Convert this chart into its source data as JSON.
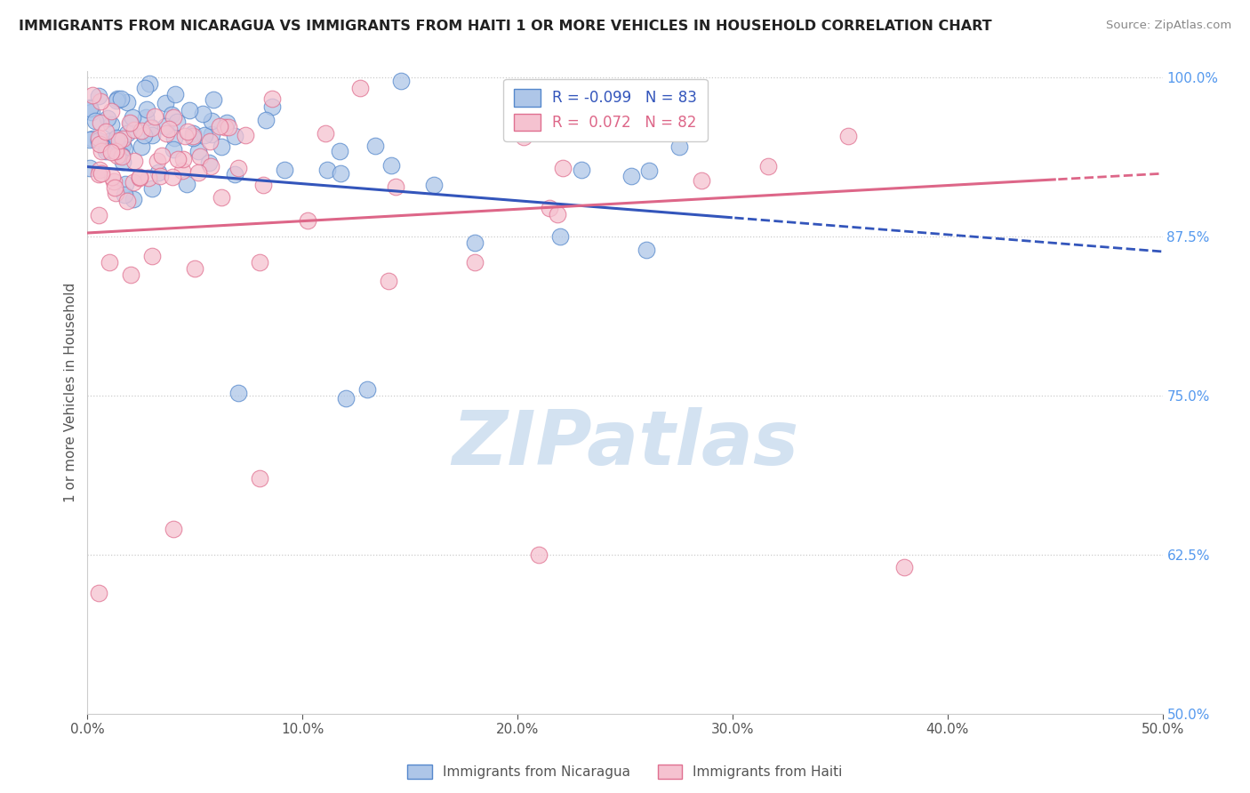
{
  "title": "IMMIGRANTS FROM NICARAGUA VS IMMIGRANTS FROM HAITI 1 OR MORE VEHICLES IN HOUSEHOLD CORRELATION CHART",
  "source": "Source: ZipAtlas.com",
  "ylabel": "1 or more Vehicles in Household",
  "xlim": [
    0.0,
    0.5
  ],
  "ylim": [
    0.5,
    1.005
  ],
  "yticks": [
    0.5,
    0.625,
    0.75,
    0.875,
    1.0
  ],
  "ytick_labels": [
    "50.0%",
    "62.5%",
    "75.0%",
    "87.5%",
    "100.0%"
  ],
  "xticks": [
    0.0,
    0.1,
    0.2,
    0.3,
    0.4,
    0.5
  ],
  "xtick_labels": [
    "0.0%",
    "10.0%",
    "20.0%",
    "30.0%",
    "40.0%",
    "50.0%"
  ],
  "nicaragua_R": -0.099,
  "nicaragua_N": 83,
  "haiti_R": 0.072,
  "haiti_N": 82,
  "nicaragua_color": "#aec6e8",
  "nicaragua_edge": "#5588cc",
  "haiti_color": "#f5c2d0",
  "haiti_edge": "#e07090",
  "nicaragua_line_color": "#3355bb",
  "haiti_line_color": "#dd6688",
  "watermark_color": "#ccddef",
  "ytick_color": "#5599ee",
  "grid_color": "#cccccc",
  "title_color": "#222222",
  "source_color": "#888888",
  "ylabel_color": "#555555"
}
